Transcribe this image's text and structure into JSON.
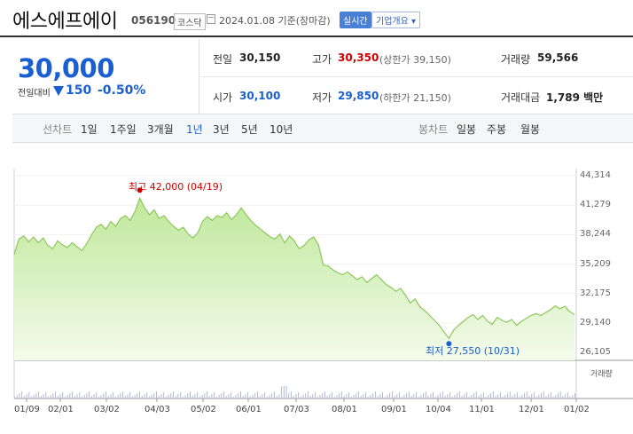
{
  "header": {
    "name": "에스에프에이",
    "code": "056190",
    "market": "코스닥",
    "date": "2024.01.08 기준(장마감)",
    "realtime": "실시간",
    "company_info": "기업개요 ▾"
  },
  "price": {
    "current": "30,000",
    "change_label": "전일대비",
    "change": "150",
    "change_pct": "-0.50%"
  },
  "stats": {
    "prev_label": "전일",
    "prev": "30,150",
    "high_label": "고가",
    "high": "30,350",
    "upper": "(상한가 39,150)",
    "volume_label": "거래량",
    "volume": "59,566",
    "open_label": "시가",
    "open": "30,100",
    "low_label": "저가",
    "low": "29,850",
    "lower": "(하한가 21,150)",
    "amount_label": "거래대금",
    "amount": "1,789 백만"
  },
  "tabs": {
    "line_label": "선차트",
    "line": [
      "1일",
      "1주일",
      "3개월",
      "1년",
      "3년",
      "5년",
      "10년"
    ],
    "candle_label": "봉차트",
    "candle": [
      "일봉",
      "주봉",
      "월봉"
    ]
  },
  "chart_data": {
    "type": "area",
    "y_ticks": [
      "44,314",
      "41,279",
      "38,244",
      "35,209",
      "32,175",
      "29,140",
      "26,105"
    ],
    "ylim": [
      26105,
      44314
    ],
    "x_ticks": [
      "01/09",
      "02/01",
      "03/02",
      "04/03",
      "05/02",
      "06/01",
      "07/03",
      "08/01",
      "09/01",
      "10/04",
      "11/01",
      "12/01",
      "01/02"
    ],
    "max_label": "최고 42,000 (04/19)",
    "min_label": "최저 27,550 (10/31)",
    "volume_label": "거래량",
    "colors": {
      "fill": "#d6f2b8",
      "line": "#8dc85a",
      "max": "#d10000",
      "min": "#1a5fd1"
    },
    "values": [
      36200,
      37800,
      38100,
      37500,
      38000,
      37400,
      37900,
      37100,
      36800,
      37600,
      37200,
      36900,
      37400,
      37000,
      36600,
      37300,
      38200,
      39000,
      39300,
      38800,
      39600,
      39100,
      39900,
      40200,
      39700,
      40600,
      42000,
      41000,
      40300,
      40800,
      39900,
      40200,
      39600,
      39100,
      38700,
      39000,
      38300,
      37900,
      38400,
      39600,
      40100,
      39700,
      40200,
      40000,
      40500,
      39800,
      40300,
      41000,
      40300,
      39700,
      39200,
      38800,
      38400,
      38000,
      37800,
      38300,
      37400,
      38100,
      37600,
      36800,
      37100,
      37700,
      38000,
      37200,
      35100,
      35000,
      34600,
      34300,
      34100,
      34400,
      34000,
      33600,
      33900,
      33300,
      33700,
      34100,
      33600,
      33100,
      32800,
      32400,
      32700,
      32000,
      31200,
      31600,
      30800,
      30400,
      29900,
      29400,
      28900,
      28200,
      27550,
      28400,
      28900,
      29300,
      29700,
      30000,
      29500,
      29900,
      29300,
      29000,
      29700,
      29400,
      29200,
      29500,
      28900,
      29300,
      29600,
      29900,
      30100,
      29900,
      30200,
      30500,
      30900,
      30600,
      30850,
      30300,
      30000
    ]
  }
}
